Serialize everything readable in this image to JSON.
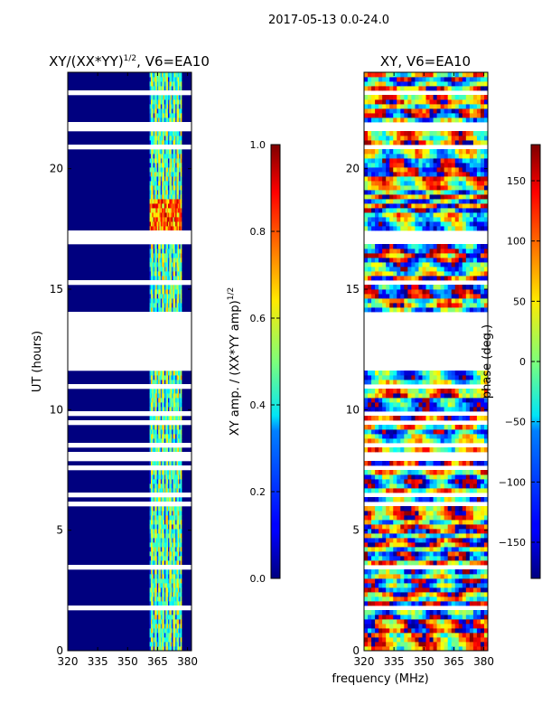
{
  "figure_title": "2017-05-13 0.0-24.0",
  "x_label": "frequency (MHz)",
  "chart_data": [
    {
      "type": "heatmap",
      "title_base": "XY/(XX*YY)",
      "title_exp": "1/2",
      "title_suffix": ", V6=EA10",
      "xlabel": "frequency (MHz)",
      "ylabel": "UT (hours)",
      "xlim": [
        320,
        382
      ],
      "ylim": [
        0,
        24
      ],
      "xticks": [
        320,
        335,
        350,
        365,
        380
      ],
      "yticks": [
        0,
        5,
        10,
        15,
        20
      ],
      "data_freq_range": [
        361,
        377
      ],
      "gap_hours": [
        11.6,
        13.8
      ],
      "colorbar": {
        "label_base": "XY amp. / (XX*YY amp)",
        "label_exp": "1/2",
        "range": [
          0.0,
          1.0
        ],
        "ticks": [
          0.0,
          0.2,
          0.4,
          0.6,
          0.8,
          1.0
        ],
        "tick_labels": [
          "0.0",
          "0.2",
          "0.4",
          "0.6",
          "0.8",
          "1.0"
        ],
        "colormap": "jet"
      }
    },
    {
      "type": "heatmap",
      "title": "XY, V6=EA10",
      "xlabel": "frequency (MHz)",
      "ylabel": "",
      "xlim": [
        320,
        382
      ],
      "ylim": [
        0,
        24
      ],
      "xticks": [
        320,
        335,
        350,
        365,
        380
      ],
      "yticks": [
        0,
        5,
        10,
        15,
        20
      ],
      "gap_hours": [
        11.6,
        13.8
      ],
      "colorbar": {
        "label": "phase (deg.)",
        "range": [
          -180,
          180
        ],
        "ticks": [
          -150,
          -100,
          -50,
          0,
          50,
          100,
          150
        ],
        "tick_labels": [
          "−150",
          "−100",
          "−50",
          "0",
          "50",
          "100",
          "150"
        ],
        "colormap": "jet"
      }
    }
  ]
}
